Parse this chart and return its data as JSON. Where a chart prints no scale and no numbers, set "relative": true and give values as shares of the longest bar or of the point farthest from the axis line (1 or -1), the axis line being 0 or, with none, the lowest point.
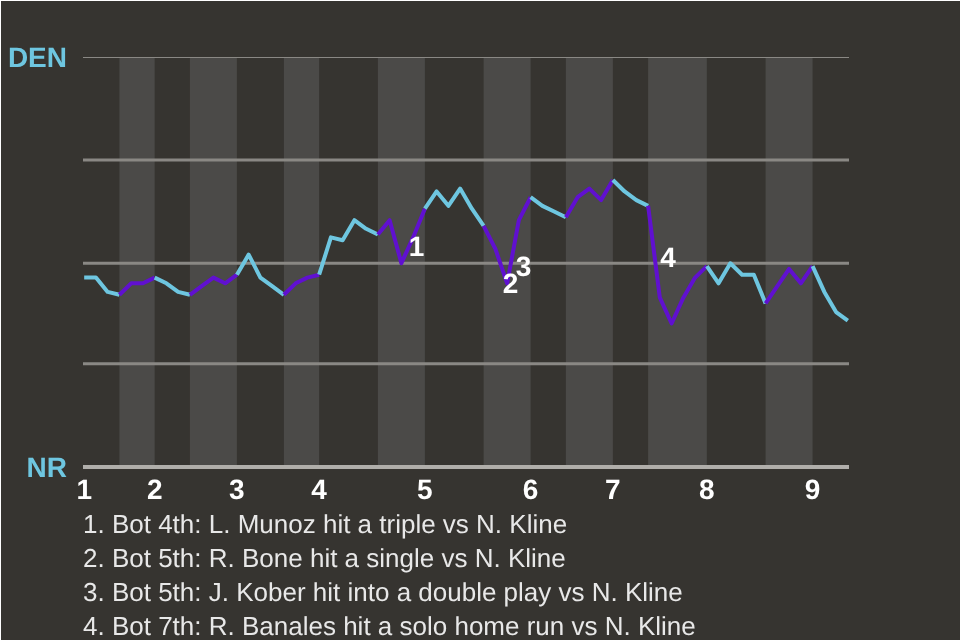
{
  "chart_data": {
    "type": "line",
    "categories": [
      "1",
      null,
      null,
      null,
      null,
      null,
      "2",
      null,
      null,
      null,
      null,
      null,
      null,
      "3",
      null,
      null,
      null,
      null,
      null,
      null,
      "4",
      null,
      null,
      null,
      null,
      null,
      null,
      null,
      null,
      "5",
      null,
      null,
      null,
      null,
      null,
      null,
      null,
      null,
      "6",
      null,
      null,
      null,
      null,
      null,
      null,
      "7",
      null,
      null,
      null,
      null,
      null,
      null,
      null,
      "8",
      null,
      null,
      null,
      null,
      null,
      null,
      null,
      null,
      "9",
      null,
      null,
      null
    ],
    "series": [
      {
        "color": "#6ec6e0",
        "values": [
          0.66,
          0.66,
          0.61,
          0.6,
          null,
          null,
          null,
          null,
          null,
          null,
          null,
          null,
          null,
          null,
          null,
          null,
          null,
          null,
          null,
          null,
          null,
          null,
          null,
          null,
          null,
          null,
          null,
          null,
          null,
          null,
          null,
          null,
          null,
          null,
          null,
          null,
          null,
          null,
          null,
          null,
          null,
          null,
          null,
          null,
          null,
          null,
          null,
          null,
          null,
          null,
          null,
          null,
          null,
          null,
          null,
          null,
          null,
          null,
          null,
          null,
          null,
          null,
          null,
          null,
          null,
          null
        ]
      },
      {
        "color": "#6010d0",
        "values": [
          null,
          null,
          null,
          0.6,
          0.64,
          0.64,
          0.66,
          null,
          null,
          null,
          null,
          null,
          null,
          null,
          null,
          null,
          null,
          null,
          null,
          null,
          null,
          null,
          null,
          null,
          null,
          null,
          null,
          null,
          null,
          null,
          null,
          null,
          null,
          null,
          null,
          null,
          null,
          null,
          null,
          null,
          null,
          null,
          null,
          null,
          null,
          null,
          null,
          null,
          null,
          null,
          null,
          null,
          null,
          null,
          null,
          null,
          null,
          null,
          null,
          null,
          null,
          null,
          null,
          null,
          null,
          null
        ]
      },
      {
        "color": "#6ec6e0",
        "values": [
          null,
          null,
          null,
          null,
          null,
          null,
          0.66,
          0.64,
          0.61,
          0.6,
          null,
          null,
          null,
          null,
          null,
          null,
          null,
          null,
          null,
          null,
          null,
          null,
          null,
          null,
          null,
          null,
          null,
          null,
          null,
          null,
          null,
          null,
          null,
          null,
          null,
          null,
          null,
          null,
          null,
          null,
          null,
          null,
          null,
          null,
          null,
          null,
          null,
          null,
          null,
          null,
          null,
          null,
          null,
          null,
          null,
          null,
          null,
          null,
          null,
          null,
          null,
          null,
          null,
          null,
          null,
          null
        ]
      },
      {
        "color": "#6010d0",
        "values": [
          null,
          null,
          null,
          null,
          null,
          null,
          null,
          null,
          null,
          0.6,
          0.63,
          0.66,
          0.64,
          0.67,
          null,
          null,
          null,
          null,
          null,
          null,
          null,
          null,
          null,
          null,
          null,
          null,
          null,
          null,
          null,
          null,
          null,
          null,
          null,
          null,
          null,
          null,
          null,
          null,
          null,
          null,
          null,
          null,
          null,
          null,
          null,
          null,
          null,
          null,
          null,
          null,
          null,
          null,
          null,
          null,
          null,
          null,
          null,
          null,
          null,
          null,
          null,
          null,
          null,
          null,
          null,
          null
        ]
      },
      {
        "color": "#6ec6e0",
        "values": [
          null,
          null,
          null,
          null,
          null,
          null,
          null,
          null,
          null,
          null,
          null,
          null,
          null,
          0.67,
          0.74,
          0.66,
          0.63,
          0.6,
          null,
          null,
          null,
          null,
          null,
          null,
          null,
          null,
          null,
          null,
          null,
          null,
          null,
          null,
          null,
          null,
          null,
          null,
          null,
          null,
          null,
          null,
          null,
          null,
          null,
          null,
          null,
          null,
          null,
          null,
          null,
          null,
          null,
          null,
          null,
          null,
          null,
          null,
          null,
          null,
          null,
          null,
          null,
          null,
          null,
          null,
          null,
          null
        ]
      },
      {
        "color": "#6010d0",
        "values": [
          null,
          null,
          null,
          null,
          null,
          null,
          null,
          null,
          null,
          null,
          null,
          null,
          null,
          null,
          null,
          null,
          null,
          0.6,
          0.64,
          0.66,
          0.67,
          null,
          null,
          null,
          null,
          null,
          null,
          null,
          null,
          null,
          null,
          null,
          null,
          null,
          null,
          null,
          null,
          null,
          null,
          null,
          null,
          null,
          null,
          null,
          null,
          null,
          null,
          null,
          null,
          null,
          null,
          null,
          null,
          null,
          null,
          null,
          null,
          null,
          null,
          null,
          null,
          null,
          null,
          null,
          null,
          null
        ]
      },
      {
        "color": "#6ec6e0",
        "values": [
          null,
          null,
          null,
          null,
          null,
          null,
          null,
          null,
          null,
          null,
          null,
          null,
          null,
          null,
          null,
          null,
          null,
          null,
          null,
          null,
          0.67,
          0.8,
          0.79,
          0.86,
          0.83,
          0.81,
          null,
          null,
          null,
          null,
          null,
          null,
          null,
          null,
          null,
          null,
          null,
          null,
          null,
          null,
          null,
          null,
          null,
          null,
          null,
          null,
          null,
          null,
          null,
          null,
          null,
          null,
          null,
          null,
          null,
          null,
          null,
          null,
          null,
          null,
          null,
          null,
          null,
          null,
          null,
          null
        ]
      },
      {
        "color": "#6010d0",
        "values": [
          null,
          null,
          null,
          null,
          null,
          null,
          null,
          null,
          null,
          null,
          null,
          null,
          null,
          null,
          null,
          null,
          null,
          null,
          null,
          null,
          null,
          null,
          null,
          null,
          null,
          0.81,
          0.86,
          0.71,
          0.8,
          0.9,
          null,
          null,
          null,
          null,
          null,
          null,
          null,
          null,
          null,
          null,
          null,
          null,
          null,
          null,
          null,
          null,
          null,
          null,
          null,
          null,
          null,
          null,
          null,
          null,
          null,
          null,
          null,
          null,
          null,
          null,
          null,
          null,
          null,
          null,
          null,
          null
        ]
      },
      {
        "color": "#6ec6e0",
        "values": [
          null,
          null,
          null,
          null,
          null,
          null,
          null,
          null,
          null,
          null,
          null,
          null,
          null,
          null,
          null,
          null,
          null,
          null,
          null,
          null,
          null,
          null,
          null,
          null,
          null,
          null,
          null,
          null,
          null,
          0.9,
          0.96,
          0.91,
          0.97,
          0.9,
          0.84,
          null,
          null,
          null,
          null,
          null,
          null,
          null,
          null,
          null,
          null,
          null,
          null,
          null,
          null,
          null,
          null,
          null,
          null,
          null,
          null,
          null,
          null,
          null,
          null,
          null,
          null,
          null,
          null,
          null,
          null,
          null
        ]
      },
      {
        "color": "#6010d0",
        "values": [
          null,
          null,
          null,
          null,
          null,
          null,
          null,
          null,
          null,
          null,
          null,
          null,
          null,
          null,
          null,
          null,
          null,
          null,
          null,
          null,
          null,
          null,
          null,
          null,
          null,
          null,
          null,
          null,
          null,
          null,
          null,
          null,
          null,
          null,
          0.84,
          0.76,
          0.64,
          0.86,
          0.94,
          null,
          null,
          null,
          null,
          null,
          null,
          null,
          null,
          null,
          null,
          null,
          null,
          null,
          null,
          null,
          null,
          null,
          null,
          null,
          null,
          null,
          null,
          null,
          null,
          null,
          null,
          null
        ]
      },
      {
        "color": "#6ec6e0",
        "values": [
          null,
          null,
          null,
          null,
          null,
          null,
          null,
          null,
          null,
          null,
          null,
          null,
          null,
          null,
          null,
          null,
          null,
          null,
          null,
          null,
          null,
          null,
          null,
          null,
          null,
          null,
          null,
          null,
          null,
          null,
          null,
          null,
          null,
          null,
          null,
          null,
          null,
          null,
          0.94,
          0.91,
          0.89,
          0.87,
          null,
          null,
          null,
          null,
          null,
          null,
          null,
          null,
          null,
          null,
          null,
          null,
          null,
          null,
          null,
          null,
          null,
          null,
          null,
          null,
          null,
          null,
          null,
          null
        ]
      },
      {
        "color": "#6010d0",
        "values": [
          null,
          null,
          null,
          null,
          null,
          null,
          null,
          null,
          null,
          null,
          null,
          null,
          null,
          null,
          null,
          null,
          null,
          null,
          null,
          null,
          null,
          null,
          null,
          null,
          null,
          null,
          null,
          null,
          null,
          null,
          null,
          null,
          null,
          null,
          null,
          null,
          null,
          null,
          null,
          null,
          null,
          0.87,
          0.94,
          0.97,
          0.93,
          1,
          null,
          null,
          null,
          null,
          null,
          null,
          null,
          null,
          null,
          null,
          null,
          null,
          null,
          null,
          null,
          null,
          null,
          null,
          null,
          null
        ]
      },
      {
        "color": "#6ec6e0",
        "values": [
          null,
          null,
          null,
          null,
          null,
          null,
          null,
          null,
          null,
          null,
          null,
          null,
          null,
          null,
          null,
          null,
          null,
          null,
          null,
          null,
          null,
          null,
          null,
          null,
          null,
          null,
          null,
          null,
          null,
          null,
          null,
          null,
          null,
          null,
          null,
          null,
          null,
          null,
          null,
          null,
          null,
          null,
          null,
          null,
          null,
          1,
          0.96,
          0.93,
          0.91,
          null,
          null,
          null,
          null,
          null,
          null,
          null,
          null,
          null,
          null,
          null,
          null,
          null,
          null,
          null,
          null,
          null
        ]
      },
      {
        "color": "#6010d0",
        "values": [
          null,
          null,
          null,
          null,
          null,
          null,
          null,
          null,
          null,
          null,
          null,
          null,
          null,
          null,
          null,
          null,
          null,
          null,
          null,
          null,
          null,
          null,
          null,
          null,
          null,
          null,
          null,
          null,
          null,
          null,
          null,
          null,
          null,
          null,
          null,
          null,
          null,
          null,
          null,
          null,
          null,
          null,
          null,
          null,
          null,
          null,
          null,
          null,
          0.91,
          0.59,
          0.5,
          0.59,
          0.66,
          0.7,
          null,
          null,
          null,
          null,
          null,
          null,
          null,
          null,
          null,
          null,
          null,
          null
        ]
      },
      {
        "color": "#6ec6e0",
        "values": [
          null,
          null,
          null,
          null,
          null,
          null,
          null,
          null,
          null,
          null,
          null,
          null,
          null,
          null,
          null,
          null,
          null,
          null,
          null,
          null,
          null,
          null,
          null,
          null,
          null,
          null,
          null,
          null,
          null,
          null,
          null,
          null,
          null,
          null,
          null,
          null,
          null,
          null,
          null,
          null,
          null,
          null,
          null,
          null,
          null,
          null,
          null,
          null,
          null,
          null,
          null,
          null,
          null,
          0.7,
          0.64,
          0.71,
          0.67,
          0.67,
          0.57,
          null,
          null,
          null,
          null,
          null,
          null,
          null
        ]
      },
      {
        "color": "#6010d0",
        "values": [
          null,
          null,
          null,
          null,
          null,
          null,
          null,
          null,
          null,
          null,
          null,
          null,
          null,
          null,
          null,
          null,
          null,
          null,
          null,
          null,
          null,
          null,
          null,
          null,
          null,
          null,
          null,
          null,
          null,
          null,
          null,
          null,
          null,
          null,
          null,
          null,
          null,
          null,
          null,
          null,
          null,
          null,
          null,
          null,
          null,
          null,
          null,
          null,
          null,
          null,
          null,
          null,
          null,
          null,
          null,
          null,
          null,
          null,
          0.57,
          0.63,
          0.69,
          0.64,
          0.7,
          null,
          null,
          null
        ]
      },
      {
        "color": "#6ec6e0",
        "values": [
          null,
          null,
          null,
          null,
          null,
          null,
          null,
          null,
          null,
          null,
          null,
          null,
          null,
          null,
          null,
          null,
          null,
          null,
          null,
          null,
          null,
          null,
          null,
          null,
          null,
          null,
          null,
          null,
          null,
          null,
          null,
          null,
          null,
          null,
          null,
          null,
          null,
          null,
          null,
          null,
          null,
          null,
          null,
          null,
          null,
          null,
          null,
          null,
          null,
          null,
          null,
          null,
          null,
          null,
          null,
          null,
          null,
          null,
          null,
          null,
          null,
          null,
          0.7,
          0.61,
          0.54,
          0.51
        ]
      }
    ],
    "relative": true,
    "ref_lines": [
      {
        "axis": "y",
        "value": 0.36,
        "color": "#8a8884"
      },
      {
        "axis": "y",
        "value": 0.71,
        "color": "#8a8884"
      },
      {
        "axis": "y",
        "value": 1.07,
        "color": "#8a8884"
      },
      {
        "axis": "y",
        "value": 1.43,
        "color": "#8a8884"
      }
    ],
    "annotations": [
      "DEN",
      "NR",
      "1",
      "2",
      "3",
      "4",
      "1. Bot 4th: L. Munoz hit a triple vs N. Kline",
      "2. Bot 5th: R. Bone hit a single vs N. Kline",
      "3. Bot 5th: J. Kober hit into a double play vs N. Kline",
      "4. Bot 7th: R. Banales hit a solo home run vs N. Kline"
    ]
  }
}
